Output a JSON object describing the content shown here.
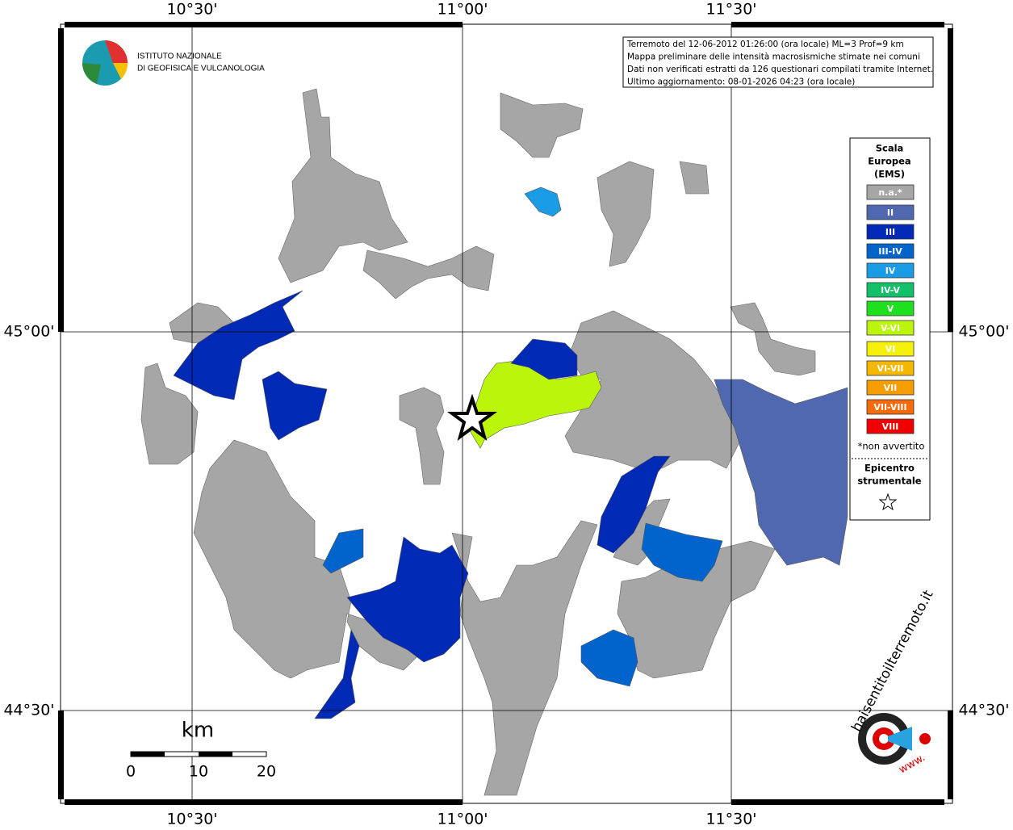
{
  "logo": {
    "lines": [
      "ISTITUTO NAZIONALE",
      "DI GEOFISICA E VULCANOLOGIA"
    ]
  },
  "info": [
    "Terremoto del 12-06-2012 01:26:00 (ora locale) ML=3 Prof=9 km",
    "Mappa preliminare delle intensità macrosismiche stimate nei comuni",
    "Dati non verificati estratti da 126 questionari compilati tramite Internet.",
    "Ultimo aggiornamento: 08-01-2026 04:23 (ora locale)"
  ],
  "axes": {
    "longitude": [
      "10°30'",
      "11°00'",
      "11°30'"
    ],
    "latitude": [
      "45°00'",
      "44°30'"
    ]
  },
  "legend": {
    "title": [
      "Scala",
      "Europea",
      "(EMS)"
    ],
    "classes": [
      {
        "label": "n.a.*",
        "color": "#a6a6a6"
      },
      {
        "label": "II",
        "color": "#5068b0"
      },
      {
        "label": "III",
        "color": "#0029b5"
      },
      {
        "label": "III-IV",
        "color": "#0064cc"
      },
      {
        "label": "IV",
        "color": "#1a9be6"
      },
      {
        "label": "IV-V",
        "color": "#12c06a"
      },
      {
        "label": "V",
        "color": "#1ee01e"
      },
      {
        "label": "V-VI",
        "color": "#bcf50c"
      },
      {
        "label": "VI",
        "color": "#f5f00a"
      },
      {
        "label": "VI-VII",
        "color": "#f5b800"
      },
      {
        "label": "VII",
        "color": "#f59c00"
      },
      {
        "label": "VII-VIII",
        "color": "#f56a0a"
      },
      {
        "label": "VIII",
        "color": "#f00000"
      }
    ],
    "note": "*non avvertito",
    "epicentre": [
      "Epicentro",
      "strumentale"
    ]
  },
  "scale": {
    "unit": "km",
    "labels": [
      0,
      10,
      20
    ]
  },
  "watermark": {
    "site": "haisentitoilterremoto.it",
    "prefix": "www."
  }
}
